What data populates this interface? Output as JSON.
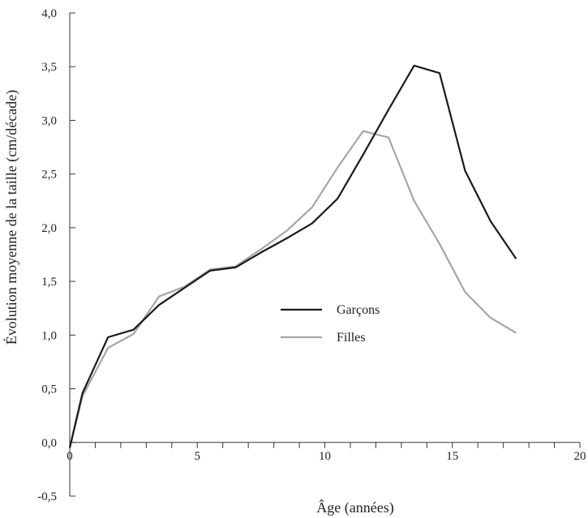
{
  "chart_data": {
    "type": "line",
    "title": "",
    "xlabel": "Âge (années)",
    "ylabel": "Évolution moyenne de la taille (cm/décade)",
    "xlim": [
      0,
      20
    ],
    "ylim": [
      -0.5,
      4.0
    ],
    "x_ticks": [
      0,
      5,
      10,
      15,
      20
    ],
    "x_tick_labels": [
      "0",
      "5",
      "10",
      "15",
      "20"
    ],
    "y_ticks": [
      -0.5,
      0.0,
      0.5,
      1.0,
      1.5,
      2.0,
      2.5,
      3.0,
      3.5,
      4.0
    ],
    "y_tick_labels": [
      "-0,5",
      "0,0",
      "0,5",
      "1,0",
      "1,5",
      "2,0",
      "2,5",
      "3,0",
      "3,5",
      "4,0"
    ],
    "grid": false,
    "legend_position": "center-right",
    "series": [
      {
        "name": "Garçons",
        "color": "#1a1a1a",
        "x": [
          0,
          0.5,
          1.5,
          2.5,
          3.5,
          4.5,
          5.5,
          6.5,
          7.5,
          8.5,
          9.5,
          10.5,
          11.5,
          12.5,
          13.5,
          14.5,
          15.5,
          16.5,
          17.5
        ],
        "y": [
          -0.05,
          0.46,
          0.98,
          1.05,
          1.28,
          1.44,
          1.6,
          1.63,
          1.77,
          1.9,
          2.04,
          2.27,
          2.68,
          3.1,
          3.51,
          3.44,
          2.53,
          2.06,
          1.71
        ]
      },
      {
        "name": "Filles",
        "color": "#a6a6a6",
        "x": [
          0,
          0.5,
          1.5,
          2.5,
          3.5,
          4.5,
          5.5,
          6.5,
          7.5,
          8.5,
          9.5,
          10.5,
          11.5,
          12.5,
          13.5,
          14.5,
          15.5,
          16.5,
          17.5
        ],
        "y": [
          -0.05,
          0.43,
          0.88,
          1.01,
          1.36,
          1.45,
          1.61,
          1.64,
          1.8,
          1.97,
          2.19,
          2.56,
          2.9,
          2.84,
          2.25,
          1.85,
          1.4,
          1.16,
          1.02
        ]
      }
    ]
  }
}
